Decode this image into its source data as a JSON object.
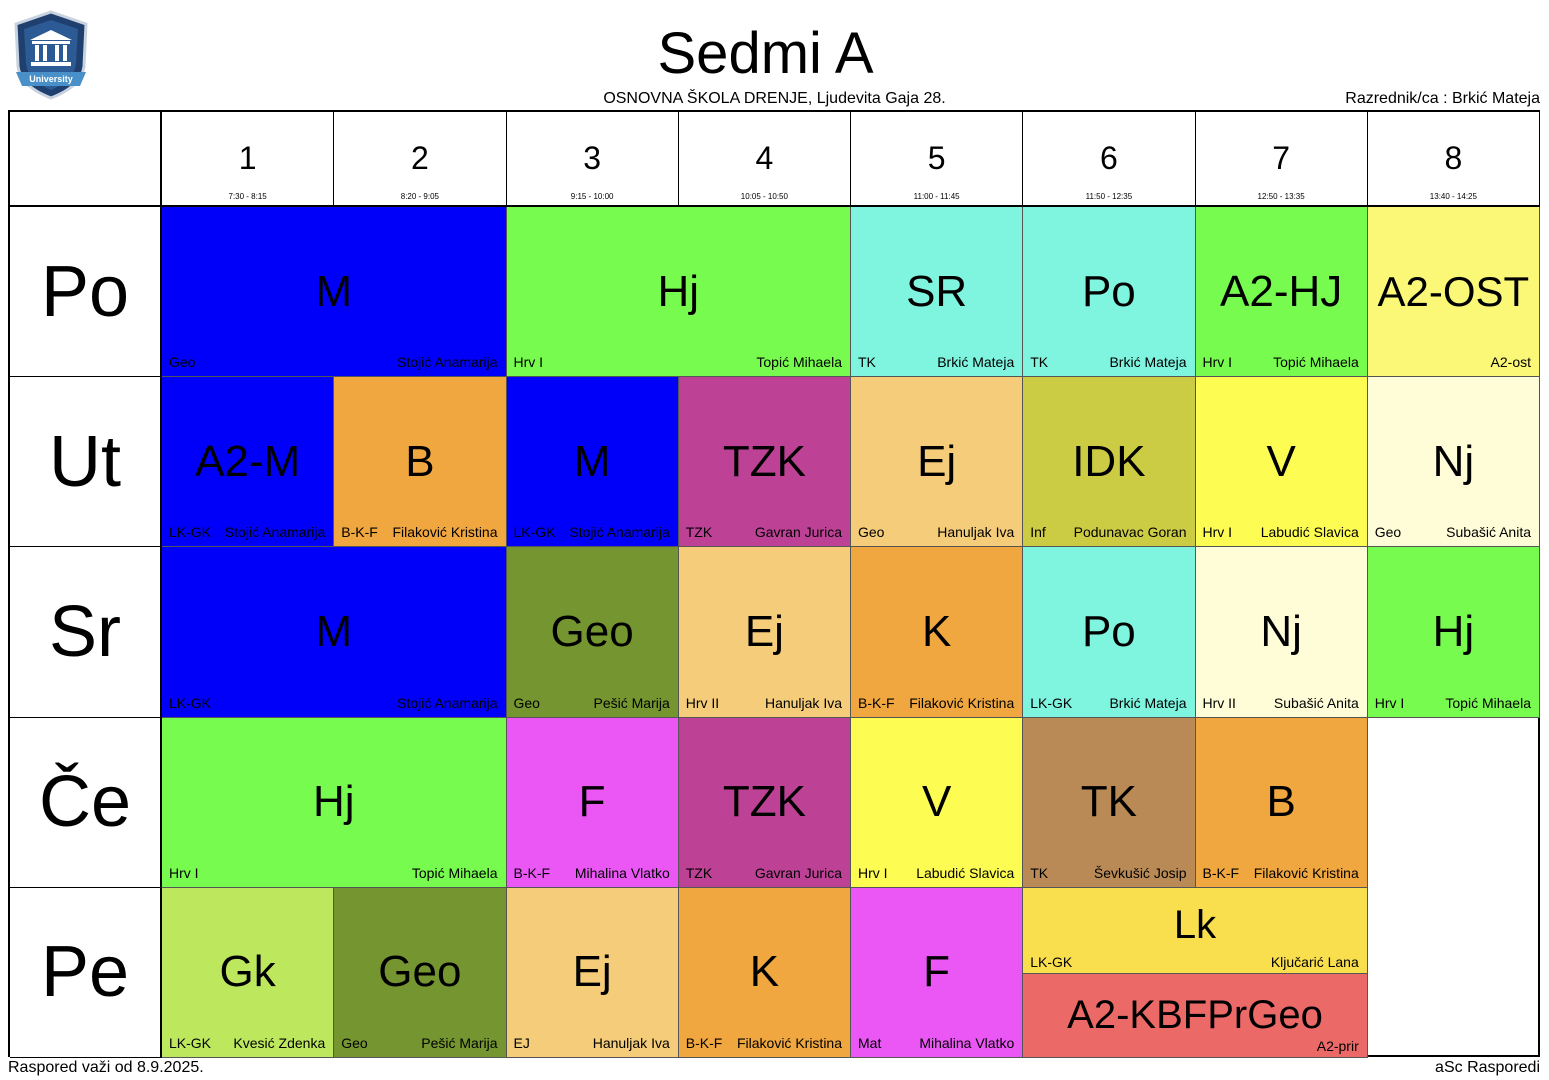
{
  "header": {
    "logo_text": "University",
    "title": "Sedmi A",
    "school": "OSNOVNA ŠKOLA  DRENJE, Ljudevita Gaja 28.",
    "homeroom": "Razrednik/ca : Brkić Mateja"
  },
  "periods": [
    {
      "num": "1",
      "time": "7:30 - 8:15"
    },
    {
      "num": "2",
      "time": "8:20 - 9:05"
    },
    {
      "num": "3",
      "time": "9:15 - 10:00"
    },
    {
      "num": "4",
      "time": "10:05 - 10:50"
    },
    {
      "num": "5",
      "time": "11:00 - 11:45"
    },
    {
      "num": "6",
      "time": "11:50 - 12:35"
    },
    {
      "num": "7",
      "time": "12:50 - 13:35"
    },
    {
      "num": "8",
      "time": "13:40 - 14:25"
    }
  ],
  "days": [
    "Po",
    "Ut",
    "Sr",
    "Če",
    "Pe"
  ],
  "lessons": [
    {
      "day": 0,
      "start": 0,
      "span": 2,
      "subject": "M",
      "room": "Geo",
      "teacher": "Stojić Anamarija",
      "color": "#0000FA"
    },
    {
      "day": 0,
      "start": 2,
      "span": 2,
      "subject": "Hj",
      "room": "Hrv I",
      "teacher": "Topić Mihaela",
      "color": "#76FB4E"
    },
    {
      "day": 0,
      "start": 4,
      "span": 1,
      "subject": "SR",
      "room": "TK",
      "teacher": "Brkić Mateja",
      "color": "#7FF4DF"
    },
    {
      "day": 0,
      "start": 5,
      "span": 1,
      "subject": "Po",
      "room": "TK",
      "teacher": "Brkić Mateja",
      "color": "#7FF4DF"
    },
    {
      "day": 0,
      "start": 6,
      "span": 1,
      "subject": "A2-HJ",
      "room": "Hrv I",
      "teacher": "Topić Mihaela",
      "color": "#76FB4E"
    },
    {
      "day": 0,
      "start": 7,
      "span": 1,
      "subject": "A2-OST",
      "room": "",
      "teacher": "A2-ost",
      "color": "#FBF877",
      "wrap": true
    },
    {
      "day": 1,
      "start": 0,
      "span": 1,
      "subject": "A2-M",
      "room": "LK-GK",
      "teacher": "Stojić Anamarija",
      "color": "#0000FA"
    },
    {
      "day": 1,
      "start": 1,
      "span": 1,
      "subject": "B",
      "room": "B-K-F",
      "teacher": "Filaković Kristina",
      "color": "#F1A73F"
    },
    {
      "day": 1,
      "start": 2,
      "span": 1,
      "subject": "M",
      "room": "LK-GK",
      "teacher": "Stojić Anamarija",
      "color": "#0000FA"
    },
    {
      "day": 1,
      "start": 3,
      "span": 1,
      "subject": "TZK",
      "room": "TZK",
      "teacher": "Gavran Jurica",
      "color": "#BD4296"
    },
    {
      "day": 1,
      "start": 4,
      "span": 1,
      "subject": "Ej",
      "room": "Geo",
      "teacher": "Hanuljak Iva",
      "color": "#F5CD7A"
    },
    {
      "day": 1,
      "start": 5,
      "span": 1,
      "subject": "IDK",
      "room": "Inf",
      "teacher": "Podunavac Goran",
      "color": "#CCCC44"
    },
    {
      "day": 1,
      "start": 6,
      "span": 1,
      "subject": "V",
      "room": "Hrv I",
      "teacher": "Labudić Slavica",
      "color": "#FDFC52"
    },
    {
      "day": 1,
      "start": 7,
      "span": 1,
      "subject": "Nj",
      "room": "Geo",
      "teacher": "Subašić Anita",
      "color": "#FFFDD8"
    },
    {
      "day": 2,
      "start": 0,
      "span": 2,
      "subject": "M",
      "room": "LK-GK",
      "teacher": "Stojić Anamarija",
      "color": "#0000FA"
    },
    {
      "day": 2,
      "start": 2,
      "span": 1,
      "subject": "Geo",
      "room": "Geo",
      "teacher": "Pešić Marija",
      "color": "#74952F"
    },
    {
      "day": 2,
      "start": 3,
      "span": 1,
      "subject": "Ej",
      "room": "Hrv II",
      "teacher": "Hanuljak Iva",
      "color": "#F5CD7A"
    },
    {
      "day": 2,
      "start": 4,
      "span": 1,
      "subject": "K",
      "room": "B-K-F",
      "teacher": "Filaković Kristina",
      "color": "#F1A73F"
    },
    {
      "day": 2,
      "start": 5,
      "span": 1,
      "subject": "Po",
      "room": "LK-GK",
      "teacher": "Brkić Mateja",
      "color": "#7FF4DF"
    },
    {
      "day": 2,
      "start": 6,
      "span": 1,
      "subject": "Nj",
      "room": "Hrv II",
      "teacher": "Subašić Anita",
      "color": "#FFFDD8"
    },
    {
      "day": 2,
      "start": 7,
      "span": 1,
      "subject": "Hj",
      "room": "Hrv I",
      "teacher": "Topić Mihaela",
      "color": "#76FB4E"
    },
    {
      "day": 3,
      "start": 0,
      "span": 2,
      "subject": "Hj",
      "room": "Hrv I",
      "teacher": "Topić Mihaela",
      "color": "#76FB4E"
    },
    {
      "day": 3,
      "start": 2,
      "span": 1,
      "subject": "F",
      "room": "B-K-F",
      "teacher": "Mihalina Vlatko",
      "color": "#EA57F5"
    },
    {
      "day": 3,
      "start": 3,
      "span": 1,
      "subject": "TZK",
      "room": "TZK",
      "teacher": "Gavran Jurica",
      "color": "#BD4296"
    },
    {
      "day": 3,
      "start": 4,
      "span": 1,
      "subject": "V",
      "room": "Hrv I",
      "teacher": "Labudić Slavica",
      "color": "#FDFC52"
    },
    {
      "day": 3,
      "start": 5,
      "span": 1,
      "subject": "TK",
      "room": "TK",
      "teacher": "Ševkušić Josip",
      "color": "#B98A55"
    },
    {
      "day": 3,
      "start": 6,
      "span": 1,
      "subject": "B",
      "room": "B-K-F",
      "teacher": "Filaković Kristina",
      "color": "#F1A73F"
    },
    {
      "day": 4,
      "start": 0,
      "span": 1,
      "subject": "Gk",
      "room": "LK-GK",
      "teacher": "Kvesić Zdenka",
      "color": "#BDE85E"
    },
    {
      "day": 4,
      "start": 1,
      "span": 1,
      "subject": "Geo",
      "room": "Geo",
      "teacher": "Pešić Marija",
      "color": "#74952F"
    },
    {
      "day": 4,
      "start": 2,
      "span": 1,
      "subject": "Ej",
      "room": "EJ",
      "teacher": "Hanuljak Iva",
      "color": "#F5CD7A"
    },
    {
      "day": 4,
      "start": 3,
      "span": 1,
      "subject": "K",
      "room": "B-K-F",
      "teacher": "Filaković Kristina",
      "color": "#F1A73F"
    },
    {
      "day": 4,
      "start": 4,
      "span": 1,
      "subject": "F",
      "room": "Mat",
      "teacher": "Mihalina Vlatko",
      "color": "#EA57F5"
    },
    {
      "day": 4,
      "start": 5,
      "span": 2,
      "half": "top",
      "subject": "Lk",
      "room": "LK-GK",
      "teacher": "Ključarić Lana",
      "color": "#F9DF4E"
    },
    {
      "day": 4,
      "start": 5,
      "span": 2,
      "half": "bottom",
      "subject": "A2-KBFPrGeo",
      "room": "",
      "teacher": "A2-prir",
      "color": "#EB6A67"
    }
  ],
  "footer": {
    "valid_from": "Raspored važi od 8.9.2025.",
    "generator": "aSc Rasporedi"
  }
}
